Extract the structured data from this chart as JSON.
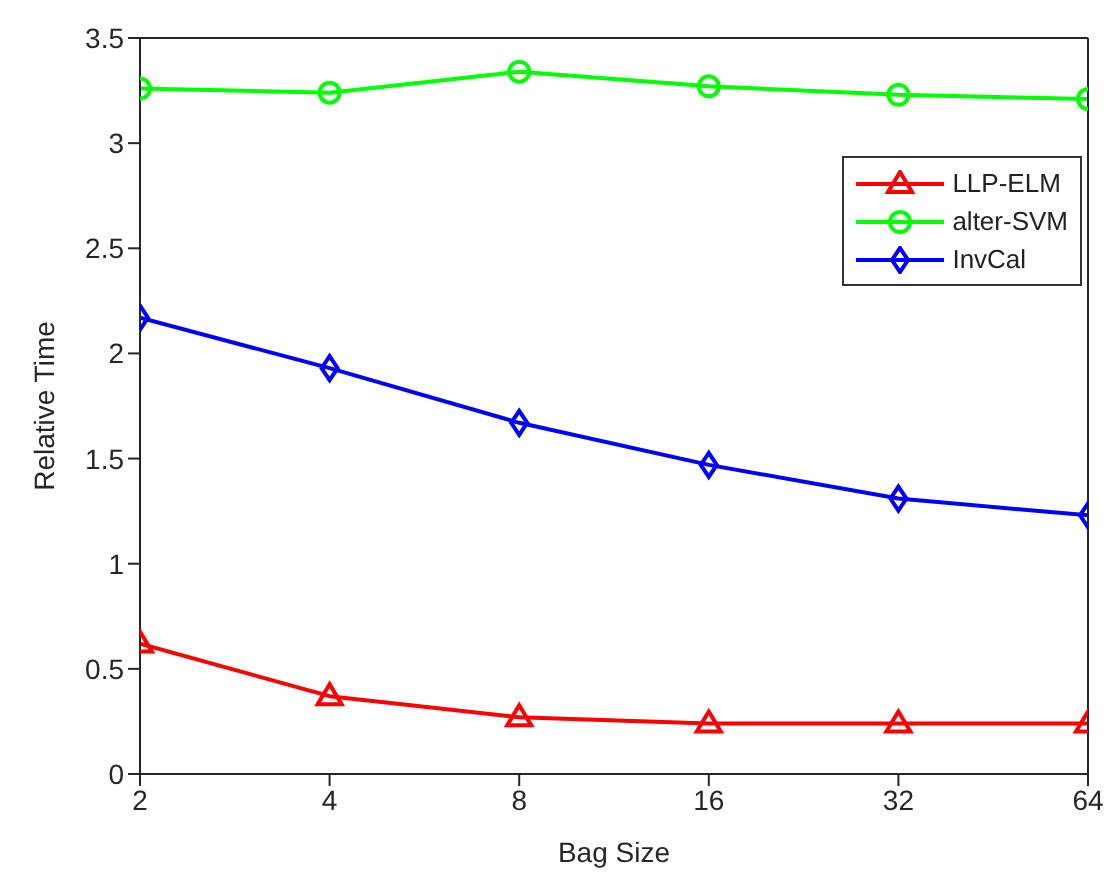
{
  "chart_data": {
    "type": "line",
    "xlabel": "Bag Size",
    "ylabel": "Relative Time",
    "categories": [
      "2",
      "4",
      "8",
      "16",
      "32",
      "64"
    ],
    "series": [
      {
        "name": "LLP-ELM",
        "color": "#ff0000",
        "marker": "triangle",
        "values": [
          0.62,
          0.37,
          0.27,
          0.24,
          0.24,
          0.24
        ]
      },
      {
        "name": "alter-SVM",
        "color": "#00ff00",
        "marker": "circle",
        "values": [
          3.26,
          3.24,
          3.34,
          3.27,
          3.23,
          3.21
        ]
      },
      {
        "name": "InvCal",
        "color": "#0000ff",
        "marker": "diamond",
        "values": [
          2.17,
          1.93,
          1.67,
          1.47,
          1.31,
          1.23
        ]
      }
    ],
    "ylim": [
      0,
      3.5
    ],
    "yticks": [
      0,
      0.5,
      1,
      1.5,
      2,
      2.5,
      3,
      3.5
    ],
    "grid": false,
    "legend": "top right",
    "line_style": "solid"
  }
}
